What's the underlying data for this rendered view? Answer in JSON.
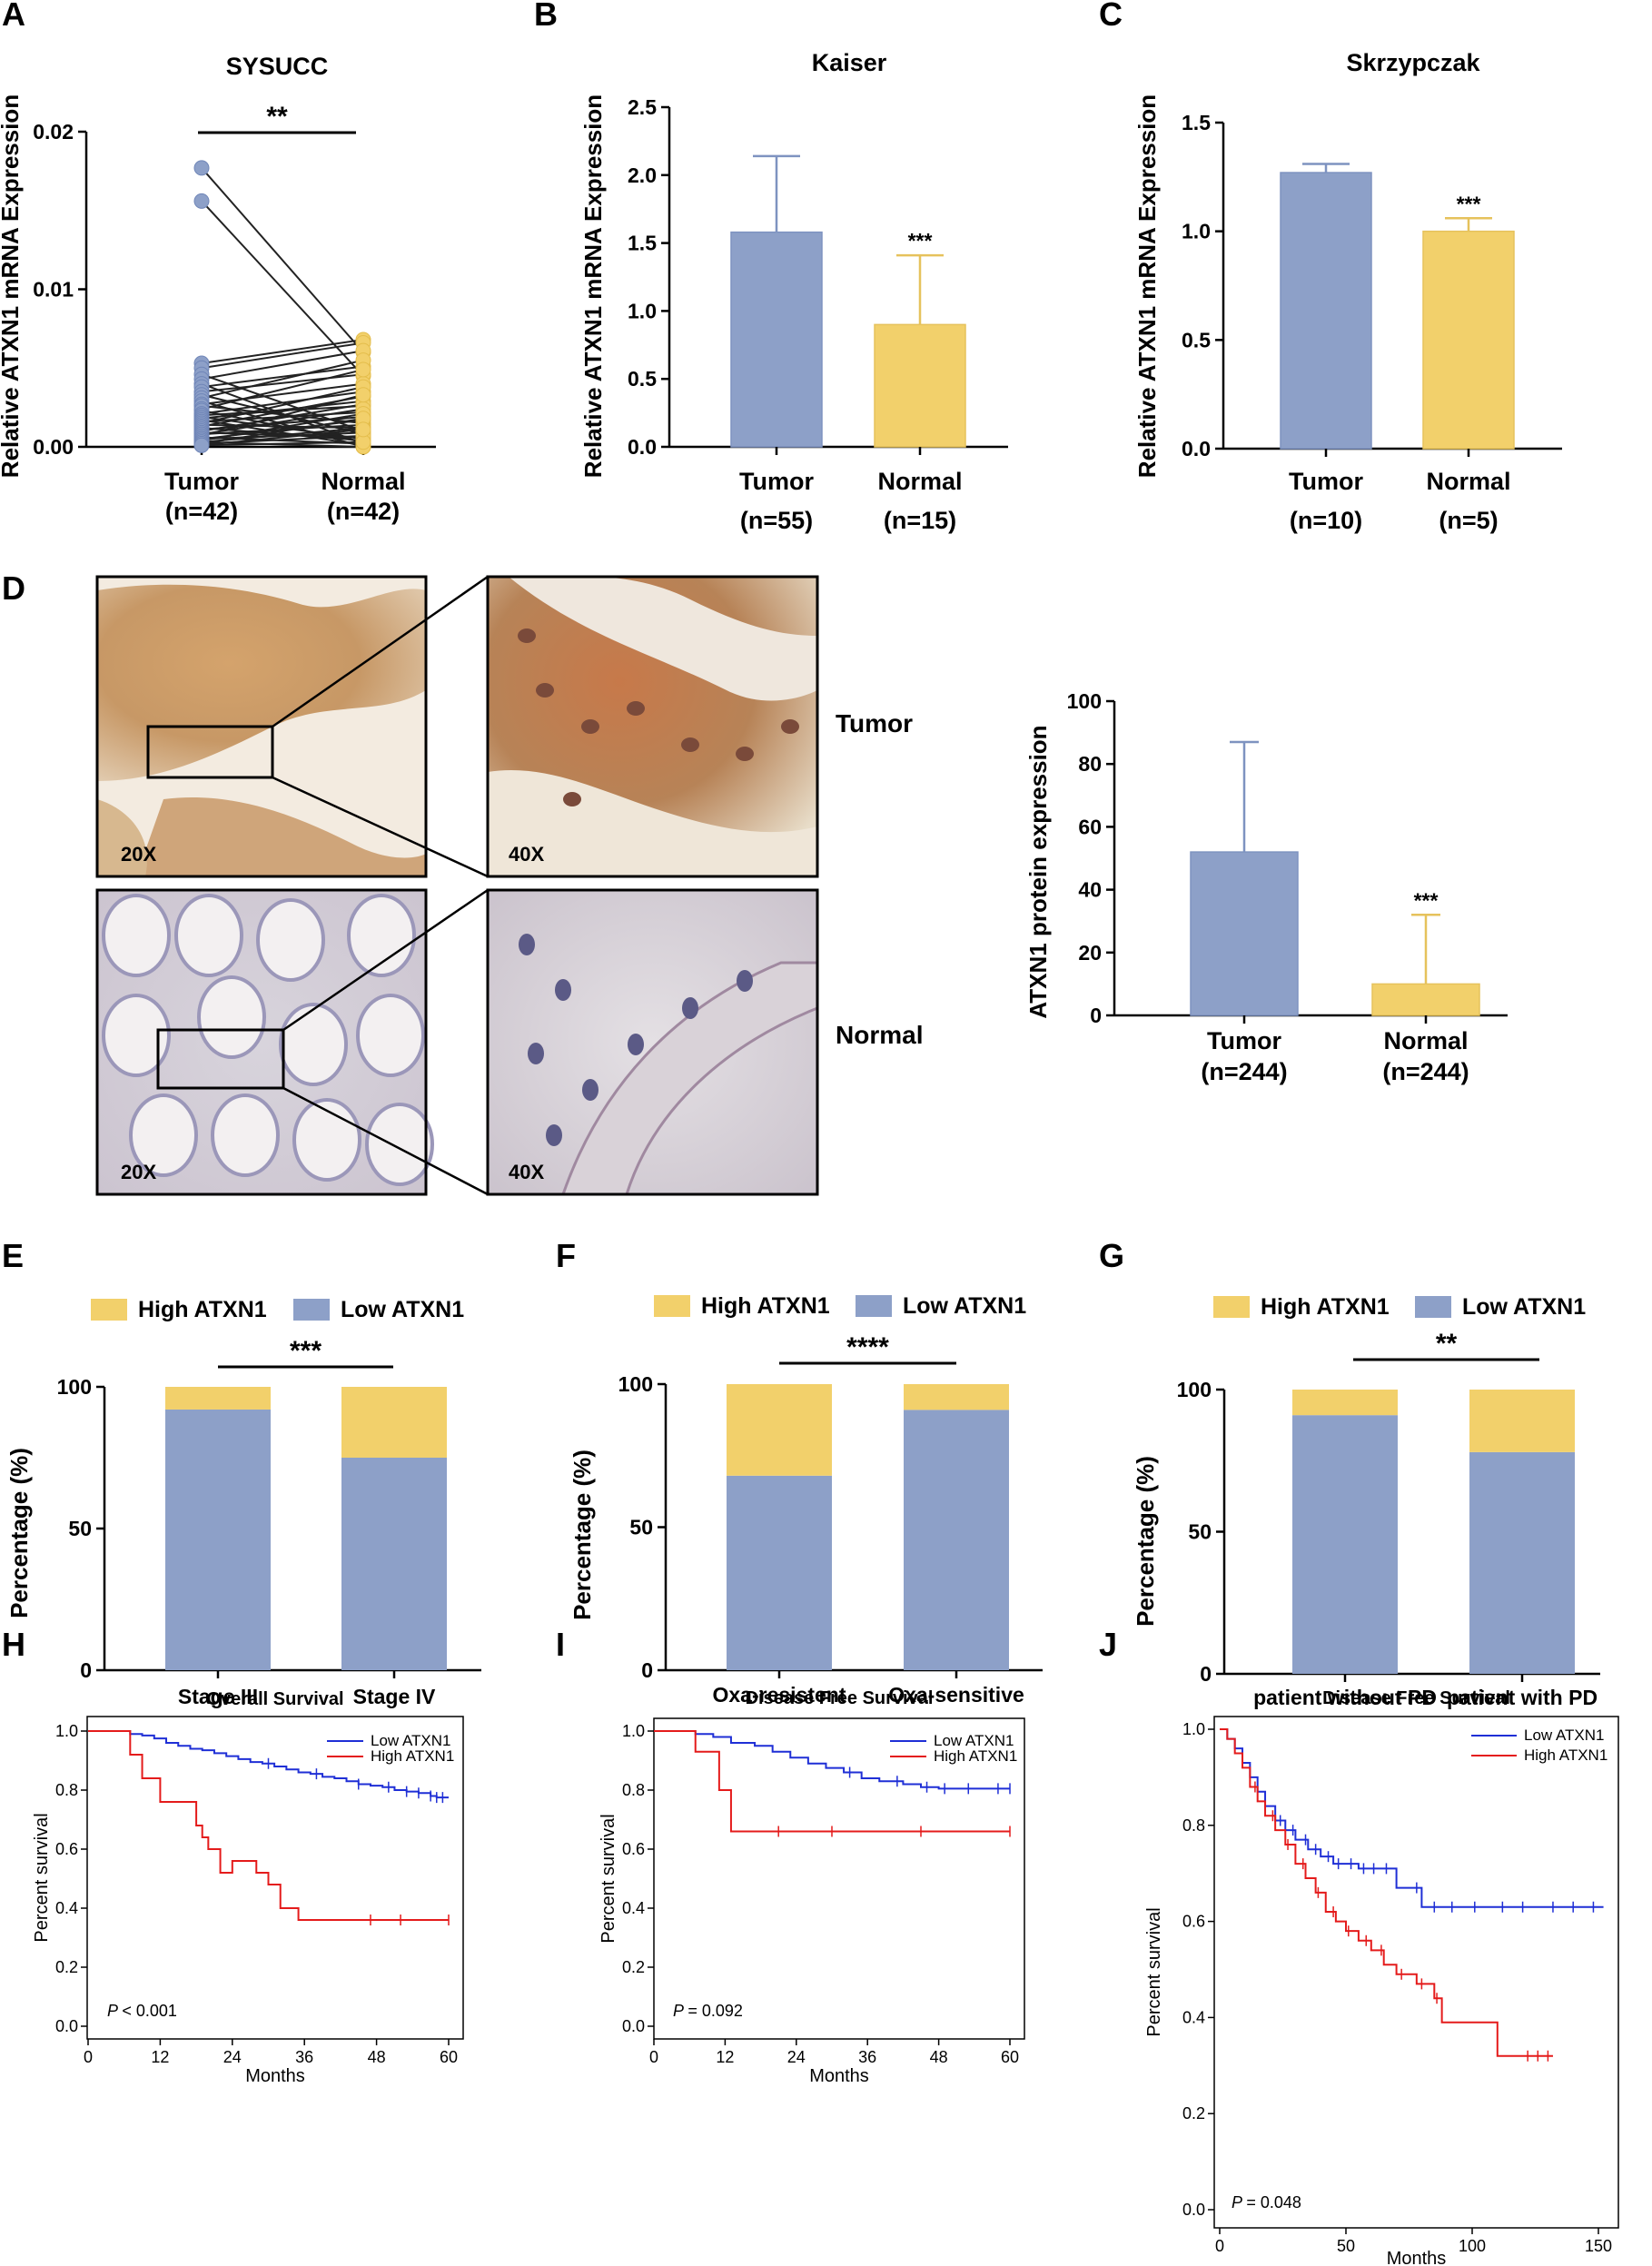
{
  "colors": {
    "tumor": "#8DA0C8",
    "normal": "#F2D06B",
    "low_line": "#1F2FD6",
    "high_line": "#E41B1B"
  },
  "panel_letters": [
    "A",
    "B",
    "C",
    "D",
    "E",
    "F",
    "G",
    "H",
    "I",
    "J"
  ],
  "ihc": {
    "row_tumor": "Tumor",
    "row_normal": "Normal",
    "mag_low": "20X",
    "mag_high": "40X",
    "icons": [
      "tumor-ihc-20x-image",
      "tumor-ihc-40x-image",
      "normal-ihc-20x-image",
      "normal-ihc-40x-image"
    ]
  },
  "chart_data": [
    {
      "panel": "A",
      "type": "scatter",
      "subtype": "paired-dot",
      "title": "SYSUCC",
      "ylabel": "Relative ATXN1 mRNA Expression",
      "ylim": [
        0,
        0.02
      ],
      "yticks": [
        "0.00",
        "0.01",
        "0.02"
      ],
      "ytick_values": [
        0,
        0.01,
        0.02
      ],
      "categories": [
        "Tumor",
        "Normal"
      ],
      "category_n": [
        "(n=42)",
        "(n=42)"
      ],
      "significance": "**",
      "pairs": [
        [
          0.0177,
          0.006
        ],
        [
          0.0156,
          0.0045
        ],
        [
          0.0053,
          0.0068
        ],
        [
          0.005,
          0.0066
        ],
        [
          0.0046,
          0.001
        ],
        [
          0.0043,
          0.0061
        ],
        [
          0.004,
          0.0002
        ],
        [
          0.0038,
          0.0051
        ],
        [
          0.0035,
          0.0046
        ],
        [
          0.0033,
          0.0008
        ],
        [
          0.0031,
          0.0055
        ],
        [
          0.0029,
          0.0
        ],
        [
          0.0027,
          0.004
        ],
        [
          0.0026,
          0.0015
        ],
        [
          0.0024,
          0.0049
        ],
        [
          0.0023,
          0.0003
        ],
        [
          0.0021,
          0.0035
        ],
        [
          0.002,
          0.0026
        ],
        [
          0.0019,
          0.0005
        ],
        [
          0.0018,
          0.0029
        ],
        [
          0.0017,
          0.0001
        ],
        [
          0.0016,
          0.0022
        ],
        [
          0.0015,
          0.0038
        ],
        [
          0.0014,
          0.0012
        ],
        [
          0.0013,
          0.0032
        ],
        [
          0.0012,
          0.0004
        ],
        [
          0.0011,
          0.0019
        ],
        [
          0.001,
          0.0027
        ],
        [
          0.0009,
          0.0006
        ],
        [
          0.0008,
          0.0024
        ],
        [
          0.0008,
          0.0014
        ],
        [
          0.0007,
          0.0033
        ],
        [
          0.0006,
          0.0002
        ],
        [
          0.0005,
          0.0017
        ],
        [
          0.0005,
          0.0009
        ],
        [
          0.0004,
          0.0021
        ],
        [
          0.0003,
          0.0
        ],
        [
          0.0003,
          0.0012
        ],
        [
          0.0002,
          0.0007
        ],
        [
          0.0002,
          0.0018
        ],
        [
          0.0001,
          0.0003
        ],
        [
          0.0001,
          0.0011
        ]
      ]
    },
    {
      "panel": "B",
      "type": "bar",
      "title": "Kaiser",
      "ylabel": "Relative ATXN1 mRNA Expression",
      "ylim": [
        0,
        2.5
      ],
      "yticks": [
        "0.0",
        "0.5",
        "1.0",
        "1.5",
        "2.0",
        "2.5"
      ],
      "ytick_values": [
        0,
        0.5,
        1,
        1.5,
        2,
        2.5
      ],
      "categories": [
        "Tumor",
        "Normal"
      ],
      "category_n": [
        "(n=55)",
        "(n=15)"
      ],
      "values": [
        1.58,
        0.9
      ],
      "errors": [
        0.56,
        0.51
      ],
      "annotations": [
        "",
        "***"
      ]
    },
    {
      "panel": "C",
      "type": "bar",
      "title": "Skrzypczak",
      "ylabel": "Relative ATXN1 mRNA Expression",
      "ylim": [
        0,
        1.5
      ],
      "yticks": [
        "0.0",
        "0.5",
        "1.0",
        "1.5"
      ],
      "ytick_values": [
        0,
        0.5,
        1,
        1.5
      ],
      "categories": [
        "Tumor",
        "Normal"
      ],
      "category_n": [
        "(n=10)",
        "(n=5)"
      ],
      "values": [
        1.27,
        1.0
      ],
      "errors": [
        0.04,
        0.06
      ],
      "annotations": [
        "",
        "***"
      ]
    },
    {
      "panel": "D",
      "type": "bar",
      "title": "",
      "ylabel": "ATXN1 protein expression",
      "ylim": [
        0,
        100
      ],
      "yticks": [
        "0",
        "20",
        "40",
        "60",
        "80",
        "100"
      ],
      "ytick_values": [
        0,
        20,
        40,
        60,
        80,
        100
      ],
      "categories": [
        "Tumor",
        "Normal"
      ],
      "category_n": [
        "(n=244)",
        "(n=244)"
      ],
      "values": [
        52,
        10
      ],
      "errors": [
        35,
        22
      ],
      "annotations": [
        "",
        "***"
      ]
    },
    {
      "panel": "E",
      "type": "bar",
      "subtype": "stacked",
      "ylabel": "Percentage (%)",
      "ylim": [
        0,
        100
      ],
      "yticks": [
        "0",
        "50",
        "100"
      ],
      "ytick_values": [
        0,
        50,
        100
      ],
      "categories": [
        "Stage III",
        "Stage IV"
      ],
      "series": [
        {
          "name": "Low ATXN1",
          "values": [
            92,
            75
          ]
        },
        {
          "name": "High ATXN1",
          "values": [
            8,
            25
          ]
        }
      ],
      "legend": [
        "High ATXN1",
        "Low ATXN1"
      ],
      "significance": "***"
    },
    {
      "panel": "F",
      "type": "bar",
      "subtype": "stacked",
      "ylabel": "Percentage (%)",
      "ylim": [
        0,
        100
      ],
      "yticks": [
        "0",
        "50",
        "100"
      ],
      "ytick_values": [
        0,
        50,
        100
      ],
      "categories": [
        "Oxa-resistent",
        "Oxa-sensitive"
      ],
      "series": [
        {
          "name": "Low ATXN1",
          "values": [
            68,
            91
          ]
        },
        {
          "name": "High ATXN1",
          "values": [
            32,
            9
          ]
        }
      ],
      "legend": [
        "High ATXN1",
        "Low ATXN1"
      ],
      "significance": "****"
    },
    {
      "panel": "G",
      "type": "bar",
      "subtype": "stacked",
      "ylabel": "Percentage (%)",
      "ylim": [
        0,
        100
      ],
      "yticks": [
        "0",
        "50",
        "100"
      ],
      "ytick_values": [
        0,
        50,
        100
      ],
      "categories": [
        "patient without PD",
        "patient with PD"
      ],
      "series": [
        {
          "name": "Low ATXN1",
          "values": [
            91,
            78
          ]
        },
        {
          "name": "High ATXN1",
          "values": [
            9,
            22
          ]
        }
      ],
      "legend": [
        "High ATXN1",
        "Low ATXN1"
      ],
      "significance": "**"
    },
    {
      "panel": "H",
      "type": "line",
      "subtype": "kaplan-meier",
      "title": "Overall Survival",
      "xlabel": "Months",
      "ylabel": "Percent survival",
      "xlim": [
        0,
        60
      ],
      "ylim": [
        0,
        1
      ],
      "xticks": [
        "0",
        "12",
        "24",
        "36",
        "48",
        "60"
      ],
      "xtick_values": [
        0,
        12,
        24,
        36,
        48,
        60
      ],
      "yticks": [
        "0.0",
        "0.2",
        "0.4",
        "0.6",
        "0.8",
        "1.0"
      ],
      "ytick_values": [
        0,
        0.2,
        0.4,
        0.6,
        0.8,
        1
      ],
      "pvalue_label": "P",
      "pvalue": "< 0.001",
      "series": [
        {
          "name": "Low ATXN1",
          "points": [
            [
              0,
              1
            ],
            [
              6,
              1
            ],
            [
              7,
              0.99
            ],
            [
              9,
              0.985
            ],
            [
              11,
              0.975
            ],
            [
              13,
              0.96
            ],
            [
              15,
              0.95
            ],
            [
              17,
              0.94
            ],
            [
              19,
              0.935
            ],
            [
              21,
              0.925
            ],
            [
              23,
              0.915
            ],
            [
              25,
              0.905
            ],
            [
              27,
              0.895
            ],
            [
              29,
              0.89
            ],
            [
              31,
              0.88
            ],
            [
              33,
              0.87
            ],
            [
              35,
              0.86
            ],
            [
              37,
              0.855
            ],
            [
              39,
              0.845
            ],
            [
              41,
              0.84
            ],
            [
              43,
              0.83
            ],
            [
              45,
              0.82
            ],
            [
              47,
              0.815
            ],
            [
              49,
              0.81
            ],
            [
              51,
              0.8
            ],
            [
              53,
              0.795
            ],
            [
              55,
              0.79
            ],
            [
              57,
              0.78
            ],
            [
              58,
              0.775
            ],
            [
              60,
              0.775
            ]
          ],
          "censors": [
            30,
            38,
            45,
            50,
            53,
            55,
            57,
            58,
            59
          ]
        },
        {
          "name": "High ATXN1",
          "points": [
            [
              0,
              1
            ],
            [
              7,
              1
            ],
            [
              7,
              0.92
            ],
            [
              9,
              0.92
            ],
            [
              9,
              0.84
            ],
            [
              12,
              0.84
            ],
            [
              12,
              0.76
            ],
            [
              18,
              0.76
            ],
            [
              18,
              0.68
            ],
            [
              19,
              0.68
            ],
            [
              19,
              0.64
            ],
            [
              20,
              0.64
            ],
            [
              20,
              0.6
            ],
            [
              22,
              0.6
            ],
            [
              22,
              0.52
            ],
            [
              24,
              0.52
            ],
            [
              24,
              0.56
            ],
            [
              28,
              0.56
            ],
            [
              28,
              0.52
            ],
            [
              30,
              0.52
            ],
            [
              30,
              0.48
            ],
            [
              32,
              0.48
            ],
            [
              32,
              0.4
            ],
            [
              35,
              0.4
            ],
            [
              35,
              0.36
            ],
            [
              60,
              0.36
            ]
          ],
          "censors": [
            47,
            52,
            60
          ]
        }
      ]
    },
    {
      "panel": "I",
      "type": "line",
      "subtype": "kaplan-meier",
      "title": "Disease Free Survival",
      "xlabel": "Months",
      "ylabel": "Percent survival",
      "xlim": [
        0,
        60
      ],
      "ylim": [
        0,
        1
      ],
      "xticks": [
        "0",
        "12",
        "24",
        "36",
        "48",
        "60"
      ],
      "xtick_values": [
        0,
        12,
        24,
        36,
        48,
        60
      ],
      "yticks": [
        "0.0",
        "0.2",
        "0.4",
        "0.6",
        "0.8",
        "1.0"
      ],
      "ytick_values": [
        0,
        0.2,
        0.4,
        0.6,
        0.8,
        1
      ],
      "pvalue_label": "P",
      "pvalue": "= 0.092",
      "series": [
        {
          "name": "Low ATXN1",
          "points": [
            [
              0,
              1
            ],
            [
              6,
              1
            ],
            [
              7,
              0.99
            ],
            [
              10,
              0.98
            ],
            [
              13,
              0.96
            ],
            [
              17,
              0.95
            ],
            [
              20,
              0.93
            ],
            [
              23,
              0.91
            ],
            [
              26,
              0.89
            ],
            [
              29,
              0.875
            ],
            [
              32,
              0.86
            ],
            [
              35,
              0.84
            ],
            [
              38,
              0.83
            ],
            [
              42,
              0.82
            ],
            [
              45,
              0.81
            ],
            [
              48,
              0.805
            ],
            [
              60,
              0.805
            ]
          ],
          "censors": [
            33,
            41,
            46,
            49,
            53,
            58,
            60
          ]
        },
        {
          "name": "High ATXN1",
          "points": [
            [
              0,
              1
            ],
            [
              7,
              1
            ],
            [
              7,
              0.93
            ],
            [
              11,
              0.93
            ],
            [
              11,
              0.8
            ],
            [
              13,
              0.8
            ],
            [
              13,
              0.66
            ],
            [
              60,
              0.66
            ]
          ],
          "censors": [
            21,
            30,
            45,
            60
          ]
        }
      ]
    },
    {
      "panel": "J",
      "type": "line",
      "subtype": "kaplan-meier",
      "title": "Disease Free Survival",
      "xlabel": "Months",
      "ylabel": "Percent survival",
      "xlim": [
        0,
        150
      ],
      "ylim": [
        0,
        1
      ],
      "xticks": [
        "0",
        "50",
        "100",
        "150"
      ],
      "xtick_values": [
        0,
        50,
        100,
        150
      ],
      "yticks": [
        "0.0",
        "0.2",
        "0.4",
        "0.6",
        "0.8",
        "1.0"
      ],
      "ytick_values": [
        0,
        0.2,
        0.4,
        0.6,
        0.8,
        1
      ],
      "pvalue_label": "P",
      "pvalue": "= 0.048",
      "series": [
        {
          "name": "Low ATXN1",
          "points": [
            [
              0,
              1
            ],
            [
              3,
              0.98
            ],
            [
              6,
              0.96
            ],
            [
              9,
              0.93
            ],
            [
              12,
              0.9
            ],
            [
              15,
              0.87
            ],
            [
              18,
              0.84
            ],
            [
              22,
              0.81
            ],
            [
              26,
              0.79
            ],
            [
              30,
              0.77
            ],
            [
              35,
              0.75
            ],
            [
              40,
              0.735
            ],
            [
              45,
              0.72
            ],
            [
              55,
              0.71
            ],
            [
              65,
              0.71
            ],
            [
              70,
              0.67
            ],
            [
              80,
              0.63
            ],
            [
              100,
              0.63
            ],
            [
              152,
              0.63
            ]
          ],
          "censors": [
            18,
            24,
            29,
            34,
            38,
            43,
            47,
            52,
            57,
            61,
            66,
            78,
            85,
            92,
            101,
            112,
            120,
            132,
            140,
            148
          ]
        },
        {
          "name": "High ATXN1",
          "points": [
            [
              0,
              1
            ],
            [
              3,
              0.98
            ],
            [
              6,
              0.95
            ],
            [
              9,
              0.92
            ],
            [
              12,
              0.88
            ],
            [
              15,
              0.85
            ],
            [
              18,
              0.82
            ],
            [
              22,
              0.79
            ],
            [
              26,
              0.76
            ],
            [
              30,
              0.72
            ],
            [
              34,
              0.69
            ],
            [
              38,
              0.66
            ],
            [
              42,
              0.62
            ],
            [
              46,
              0.6
            ],
            [
              50,
              0.58
            ],
            [
              55,
              0.56
            ],
            [
              60,
              0.54
            ],
            [
              65,
              0.51
            ],
            [
              70,
              0.49
            ],
            [
              78,
              0.47
            ],
            [
              85,
              0.44
            ],
            [
              88,
              0.39
            ],
            [
              100,
              0.39
            ],
            [
              110,
              0.32
            ],
            [
              132,
              0.32
            ]
          ],
          "censors": [
            14,
            21,
            27,
            33,
            39,
            45,
            51,
            58,
            64,
            72,
            80,
            86,
            122,
            126,
            130
          ]
        }
      ]
    }
  ]
}
